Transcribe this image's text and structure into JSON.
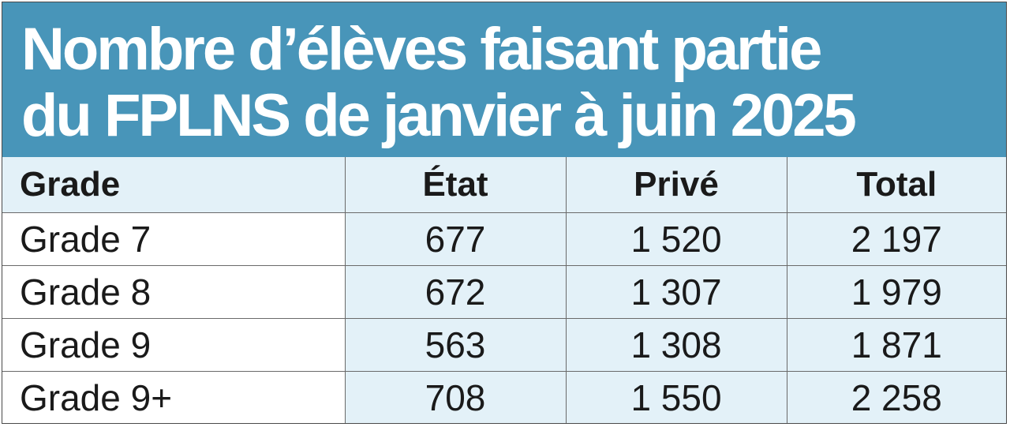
{
  "chart_data": {
    "type": "table",
    "title_lines": [
      "Nombre d’élèves faisant partie",
      "du FPLNS de janvier à juin 2025"
    ],
    "columns": [
      "Grade",
      "État",
      "Privé",
      "Total"
    ],
    "rows": [
      {
        "grade": "Grade 7",
        "etat": "677",
        "prive": "1 520",
        "total": "2 197"
      },
      {
        "grade": "Grade 8",
        "etat": "672",
        "prive": "1 307",
        "total": "1 979"
      },
      {
        "grade": "Grade 9",
        "etat": "563",
        "prive": "1 308",
        "total": "1 871"
      },
      {
        "grade": "Grade 9+",
        "etat": "708",
        "prive": "1 550",
        "total": "2 258"
      }
    ]
  },
  "colors": {
    "title_background": "#4895b9",
    "title_text": "#ffffff",
    "cell_tint": "#e3f1f8",
    "grid": "#6a6a6a"
  }
}
